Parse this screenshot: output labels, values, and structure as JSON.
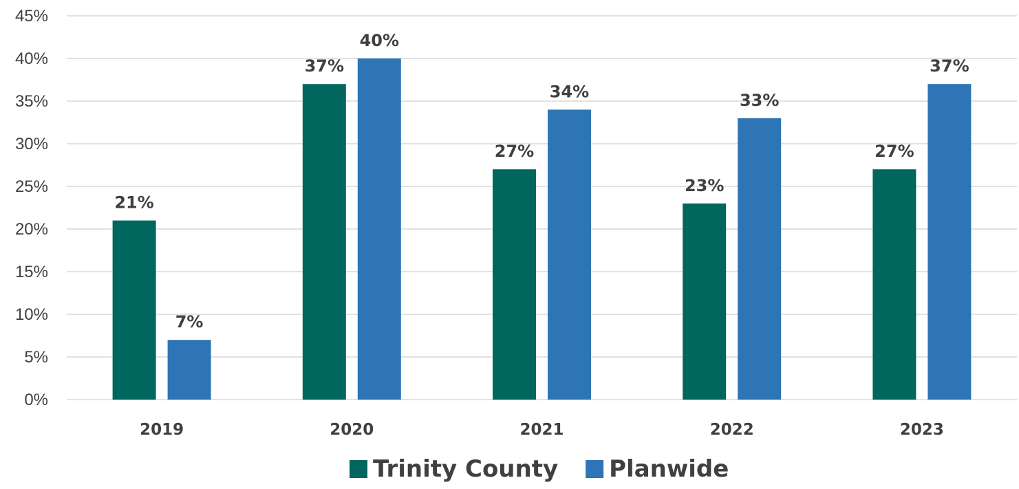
{
  "chart_data": {
    "type": "bar",
    "categories": [
      "2019",
      "2020",
      "2021",
      "2022",
      "2023"
    ],
    "series": [
      {
        "name": "Trinity County",
        "color": "#00665e",
        "values": [
          21,
          37,
          27,
          23,
          27
        ],
        "labels": [
          "21%",
          "37%",
          "27%",
          "23%",
          "27%"
        ]
      },
      {
        "name": "Planwide",
        "color": "#2e75b6",
        "values": [
          7,
          40,
          34,
          33,
          37
        ],
        "labels": [
          "7%",
          "40%",
          "34%",
          "33%",
          "37%"
        ]
      }
    ],
    "ylim": [
      0,
      45
    ],
    "yticks": [
      0,
      5,
      10,
      15,
      20,
      25,
      30,
      35,
      40,
      45
    ],
    "ytick_labels": [
      "0%",
      "5%",
      "10%",
      "15%",
      "20%",
      "25%",
      "30%",
      "35%",
      "40%",
      "45%"
    ],
    "grid": true,
    "legend": "bottom-center",
    "title": "",
    "xlabel": "",
    "ylabel": ""
  }
}
